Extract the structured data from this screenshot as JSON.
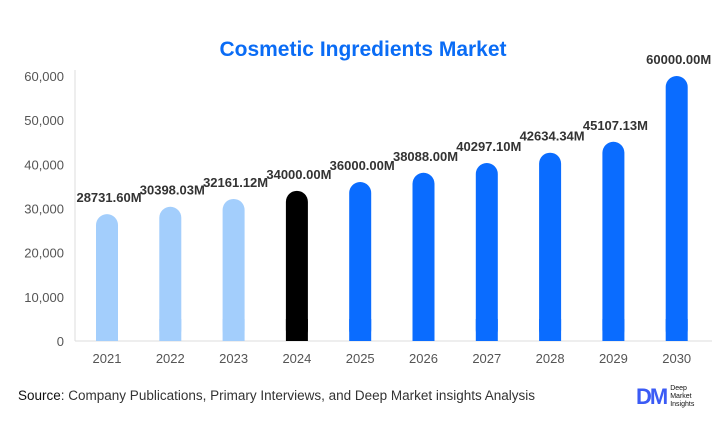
{
  "chart_data": {
    "type": "bar",
    "title": "Cosmetic Ingredients Market",
    "categories": [
      "2021",
      "2022",
      "2023",
      "2024",
      "2025",
      "2026",
      "2027",
      "2028",
      "2029",
      "2030"
    ],
    "values": [
      28731.6,
      30398.03,
      32161.12,
      34000.0,
      36000.0,
      38088.0,
      40297.1,
      42634.34,
      45107.13,
      60000.0
    ],
    "data_labels": [
      "28731.60M",
      "30398.03M",
      "32161.12M",
      "34000.00M",
      "36000.00M",
      "38088.00M",
      "40297.10M",
      "42634.34M",
      "45107.13M",
      "60000.00M"
    ],
    "colors": [
      "#a3cefc",
      "#a3cefc",
      "#a3cefc",
      "#000000",
      "#0a6cff",
      "#0a6cff",
      "#0a6cff",
      "#0a6cff",
      "#0a6cff",
      "#0a6cff"
    ],
    "ylim": [
      0,
      60000
    ],
    "yticks": [
      0,
      10000,
      20000,
      30000,
      40000,
      50000,
      60000
    ],
    "ytick_labels": [
      "0",
      "10,000",
      "20,000",
      "30,000",
      "40,000",
      "50,000",
      "60,000"
    ],
    "xlabel": "",
    "ylabel": "",
    "grid": false,
    "legend": "none"
  },
  "footer": {
    "source_label": "Source",
    "source_text": ": Company Publications, Primary Interviews, and Deep Market insights Analysis"
  },
  "logo": {
    "mark": "DM",
    "line1": "Deep",
    "line2": "Market",
    "line3": "Insights"
  }
}
